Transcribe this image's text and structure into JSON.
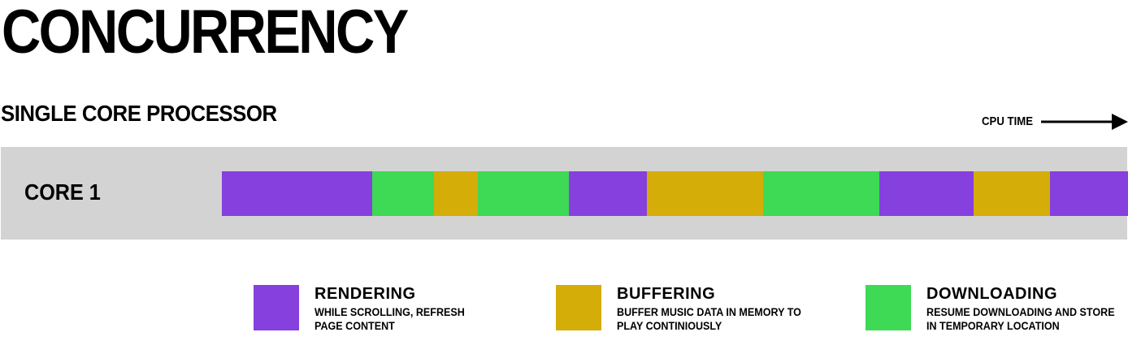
{
  "title": "CONCURRENCY",
  "subtitle": "SINGLE CORE PROCESSOR",
  "axis_label": "CPU TIME",
  "core": {
    "label": "CORE 1"
  },
  "colors": {
    "rendering": "#8540de",
    "buffering": "#d4ad09",
    "downloading": "#3ed955",
    "band": "#d3d3d3"
  },
  "timeline": [
    {
      "task": "rendering",
      "duration": 185
    },
    {
      "task": "downloading",
      "duration": 76
    },
    {
      "task": "buffering",
      "duration": 54
    },
    {
      "task": "downloading",
      "duration": 112
    },
    {
      "task": "rendering",
      "duration": 96
    },
    {
      "task": "buffering",
      "duration": 143
    },
    {
      "task": "downloading",
      "duration": 143
    },
    {
      "task": "rendering",
      "duration": 116
    },
    {
      "task": "buffering",
      "duration": 94
    },
    {
      "task": "rendering",
      "duration": 96
    }
  ],
  "legend": [
    {
      "key": "rendering",
      "title": "RENDERING",
      "desc_line1": "WHILE SCROLLING, REFRESH",
      "desc_line2": "PAGE CONTENT"
    },
    {
      "key": "buffering",
      "title": "BUFFERING",
      "desc_line1": "BUFFER MUSIC DATA IN MEMORY TO",
      "desc_line2": "PLAY CONTINIOUSLY"
    },
    {
      "key": "downloading",
      "title": "DOWNLOADING",
      "desc_line1": "RESUME DOWNLOADING AND STORE",
      "desc_line2": "IN TEMPORARY LOCATION"
    }
  ]
}
